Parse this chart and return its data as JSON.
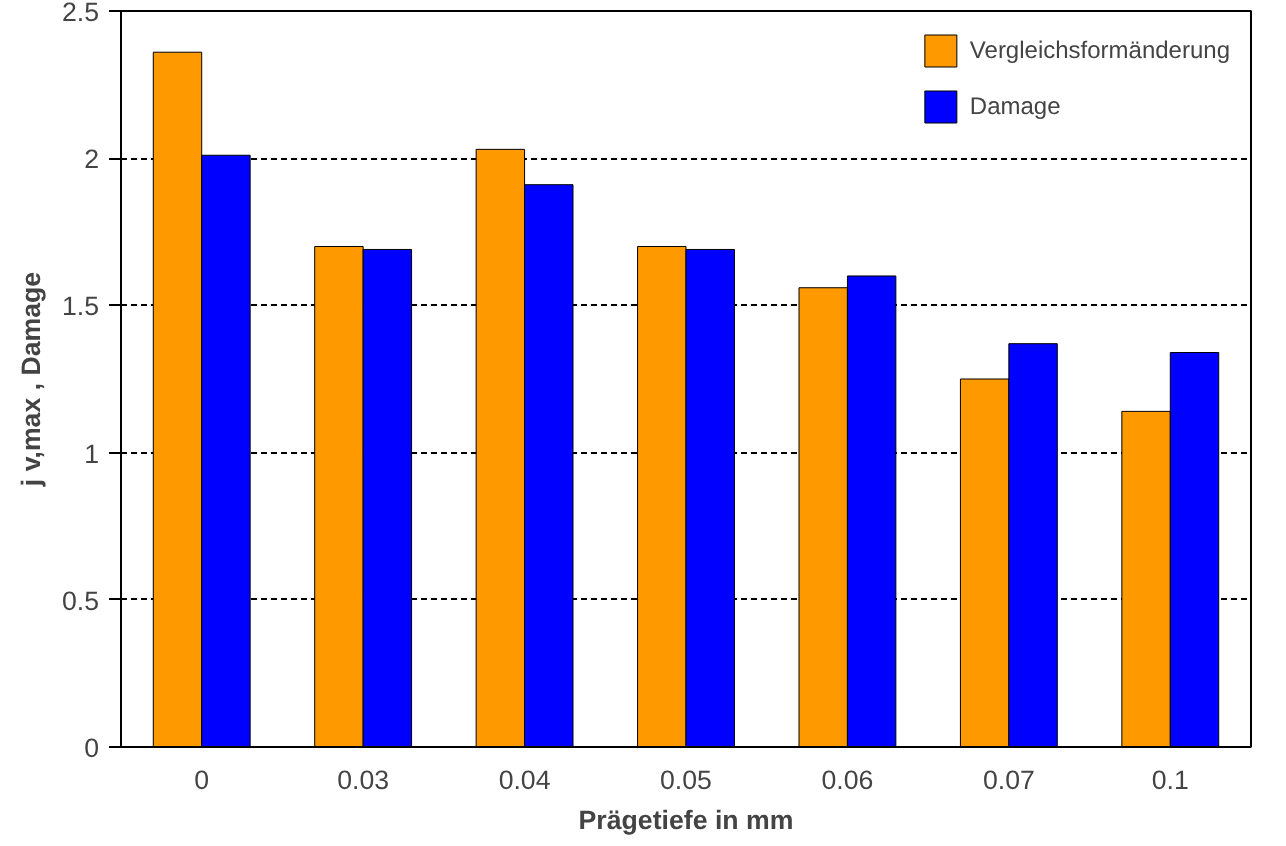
{
  "chart_data": {
    "type": "bar",
    "xlabel": "Prägetiefe in mm",
    "ylabel": "j v,max , Damage",
    "categories": [
      "0",
      "0.03",
      "0.04",
      "0.05",
      "0.06",
      "0.07",
      "0.1"
    ],
    "series": [
      {
        "name": "Vergleichsformänderung",
        "color": "#ff9900",
        "values": [
          2.36,
          1.7,
          2.03,
          1.7,
          1.56,
          1.25,
          1.14
        ]
      },
      {
        "name": "Damage",
        "color": "#0000ff",
        "values": [
          2.01,
          1.69,
          1.91,
          1.69,
          1.6,
          1.37,
          1.34
        ]
      }
    ],
    "ylim": [
      0,
      2.5
    ],
    "yticks": [
      0,
      0.5,
      1,
      1.5,
      2,
      2.5
    ],
    "grid": "y",
    "legend": "top right"
  }
}
